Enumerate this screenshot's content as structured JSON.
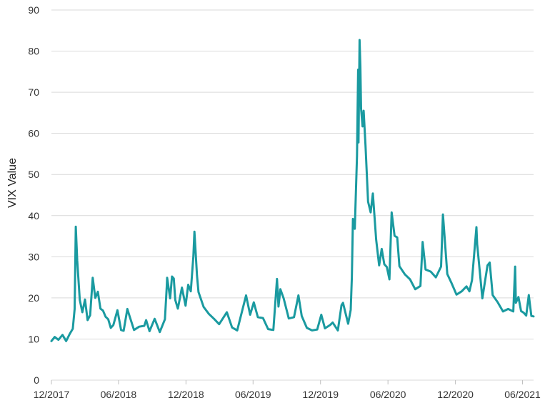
{
  "chart_data": {
    "type": "line",
    "title": "",
    "xlabel": "",
    "ylabel": "VIX Value",
    "ylim": [
      0,
      90
    ],
    "xlim": [
      "2017-12-01",
      "2021-07-01"
    ],
    "grid": true,
    "legend": "none",
    "y_ticks": [
      "0",
      "10",
      "20",
      "30",
      "40",
      "50",
      "60",
      "70",
      "80",
      "90"
    ],
    "x_ticks": [
      {
        "date": "2017-12-01",
        "label": "12/2017"
      },
      {
        "date": "2018-06-01",
        "label": "06/2018"
      },
      {
        "date": "2018-12-01",
        "label": "12/2018"
      },
      {
        "date": "2019-06-01",
        "label": "06/2019"
      },
      {
        "date": "2019-12-01",
        "label": "12/2019"
      },
      {
        "date": "2020-06-01",
        "label": "06/2020"
      },
      {
        "date": "2020-12-01",
        "label": "12/2020"
      },
      {
        "date": "2021-06-01",
        "label": "06/2021"
      }
    ],
    "series": [
      {
        "color": "#1a9aa0",
        "points": [
          [
            "2017-12-01",
            9.5
          ],
          [
            "2017-12-10",
            10.5
          ],
          [
            "2017-12-20",
            9.8
          ],
          [
            "2017-12-31",
            11.0
          ],
          [
            "2018-01-10",
            9.5
          ],
          [
            "2018-01-20",
            11.3
          ],
          [
            "2018-01-28",
            12.5
          ],
          [
            "2018-02-02",
            17.3
          ],
          [
            "2018-02-05",
            37.3
          ],
          [
            "2018-02-09",
            29.1
          ],
          [
            "2018-02-16",
            19.5
          ],
          [
            "2018-02-23",
            16.5
          ],
          [
            "2018-03-02",
            19.6
          ],
          [
            "2018-03-09",
            14.6
          ],
          [
            "2018-03-16",
            15.8
          ],
          [
            "2018-03-23",
            24.9
          ],
          [
            "2018-03-30",
            20.0
          ],
          [
            "2018-04-06",
            21.5
          ],
          [
            "2018-04-13",
            17.4
          ],
          [
            "2018-04-20",
            16.9
          ],
          [
            "2018-04-27",
            15.4
          ],
          [
            "2018-05-04",
            14.8
          ],
          [
            "2018-05-11",
            12.7
          ],
          [
            "2018-05-18",
            13.4
          ],
          [
            "2018-05-29",
            17.0
          ],
          [
            "2018-06-08",
            12.2
          ],
          [
            "2018-06-15",
            12.0
          ],
          [
            "2018-06-25",
            17.3
          ],
          [
            "2018-06-29",
            16.1
          ],
          [
            "2018-07-13",
            12.2
          ],
          [
            "2018-07-27",
            13.0
          ],
          [
            "2018-08-10",
            13.2
          ],
          [
            "2018-08-15",
            14.6
          ],
          [
            "2018-08-24",
            11.9
          ],
          [
            "2018-09-07",
            14.9
          ],
          [
            "2018-09-21",
            11.7
          ],
          [
            "2018-10-05",
            14.8
          ],
          [
            "2018-10-10",
            22.9
          ],
          [
            "2018-10-11",
            24.9
          ],
          [
            "2018-10-19",
            19.9
          ],
          [
            "2018-10-24",
            25.2
          ],
          [
            "2018-10-29",
            24.7
          ],
          [
            "2018-11-02",
            19.5
          ],
          [
            "2018-11-09",
            17.4
          ],
          [
            "2018-11-20",
            22.5
          ],
          [
            "2018-11-30",
            18.1
          ],
          [
            "2018-12-07",
            23.2
          ],
          [
            "2018-12-14",
            21.6
          ],
          [
            "2018-12-21",
            30.1
          ],
          [
            "2018-12-24",
            36.1
          ],
          [
            "2018-12-31",
            25.4
          ],
          [
            "2019-01-04",
            21.4
          ],
          [
            "2019-01-18",
            17.8
          ],
          [
            "2019-02-01",
            16.1
          ],
          [
            "2019-02-15",
            14.9
          ],
          [
            "2019-03-01",
            13.6
          ],
          [
            "2019-03-22",
            16.5
          ],
          [
            "2019-04-05",
            12.8
          ],
          [
            "2019-04-19",
            12.1
          ],
          [
            "2019-05-13",
            20.6
          ],
          [
            "2019-05-24",
            15.9
          ],
          [
            "2019-06-03",
            18.9
          ],
          [
            "2019-06-14",
            15.3
          ],
          [
            "2019-06-28",
            15.1
          ],
          [
            "2019-07-12",
            12.4
          ],
          [
            "2019-07-26",
            12.2
          ],
          [
            "2019-08-05",
            24.6
          ],
          [
            "2019-08-09",
            17.9
          ],
          [
            "2019-08-14",
            22.1
          ],
          [
            "2019-08-23",
            19.9
          ],
          [
            "2019-09-06",
            15.0
          ],
          [
            "2019-09-20",
            15.3
          ],
          [
            "2019-10-02",
            20.6
          ],
          [
            "2019-10-11",
            15.6
          ],
          [
            "2019-10-25",
            12.7
          ],
          [
            "2019-11-08",
            12.1
          ],
          [
            "2019-11-22",
            12.3
          ],
          [
            "2019-12-03",
            15.9
          ],
          [
            "2019-12-13",
            12.6
          ],
          [
            "2019-12-27",
            13.4
          ],
          [
            "2020-01-03",
            14.0
          ],
          [
            "2020-01-17",
            12.1
          ],
          [
            "2020-01-27",
            18.2
          ],
          [
            "2020-01-31",
            18.8
          ],
          [
            "2020-02-14",
            13.7
          ],
          [
            "2020-02-21",
            17.1
          ],
          [
            "2020-02-24",
            25.0
          ],
          [
            "2020-02-27",
            39.2
          ],
          [
            "2020-03-03",
            36.8
          ],
          [
            "2020-03-09",
            54.5
          ],
          [
            "2020-03-12",
            75.5
          ],
          [
            "2020-03-13",
            57.8
          ],
          [
            "2020-03-16",
            82.7
          ],
          [
            "2020-03-18",
            76.5
          ],
          [
            "2020-03-20",
            66.0
          ],
          [
            "2020-03-24",
            61.7
          ],
          [
            "2020-03-27",
            65.5
          ],
          [
            "2020-04-01",
            57.1
          ],
          [
            "2020-04-08",
            43.4
          ],
          [
            "2020-04-15",
            40.8
          ],
          [
            "2020-04-21",
            45.4
          ],
          [
            "2020-04-30",
            34.2
          ],
          [
            "2020-05-08",
            27.9
          ],
          [
            "2020-05-15",
            31.9
          ],
          [
            "2020-05-22",
            28.2
          ],
          [
            "2020-05-29",
            27.5
          ],
          [
            "2020-06-05",
            24.5
          ],
          [
            "2020-06-11",
            40.8
          ],
          [
            "2020-06-19",
            35.1
          ],
          [
            "2020-06-26",
            34.7
          ],
          [
            "2020-07-02",
            27.7
          ],
          [
            "2020-07-17",
            25.7
          ],
          [
            "2020-07-31",
            24.5
          ],
          [
            "2020-08-14",
            22.1
          ],
          [
            "2020-08-28",
            22.9
          ],
          [
            "2020-09-03",
            33.6
          ],
          [
            "2020-09-11",
            26.9
          ],
          [
            "2020-09-25",
            26.4
          ],
          [
            "2020-10-09",
            25.0
          ],
          [
            "2020-10-23",
            27.6
          ],
          [
            "2020-10-28",
            40.3
          ],
          [
            "2020-10-30",
            38.0
          ],
          [
            "2020-11-09",
            25.8
          ],
          [
            "2020-11-20",
            23.7
          ],
          [
            "2020-12-04",
            20.8
          ],
          [
            "2020-12-18",
            21.6
          ],
          [
            "2020-12-31",
            22.8
          ],
          [
            "2021-01-08",
            21.6
          ],
          [
            "2021-01-15",
            24.3
          ],
          [
            "2021-01-27",
            37.2
          ],
          [
            "2021-01-29",
            33.1
          ],
          [
            "2021-02-12",
            19.9
          ],
          [
            "2021-02-26",
            27.9
          ],
          [
            "2021-03-04",
            28.6
          ],
          [
            "2021-03-12",
            20.7
          ],
          [
            "2021-03-26",
            18.9
          ],
          [
            "2021-04-09",
            16.7
          ],
          [
            "2021-04-23",
            17.3
          ],
          [
            "2021-05-07",
            16.7
          ],
          [
            "2021-05-12",
            27.6
          ],
          [
            "2021-05-14",
            18.8
          ],
          [
            "2021-05-21",
            20.2
          ],
          [
            "2021-05-28",
            16.8
          ],
          [
            "2021-06-04",
            16.4
          ],
          [
            "2021-06-11",
            15.7
          ],
          [
            "2021-06-18",
            20.7
          ],
          [
            "2021-06-25",
            15.6
          ],
          [
            "2021-07-01",
            15.5
          ]
        ]
      }
    ]
  }
}
